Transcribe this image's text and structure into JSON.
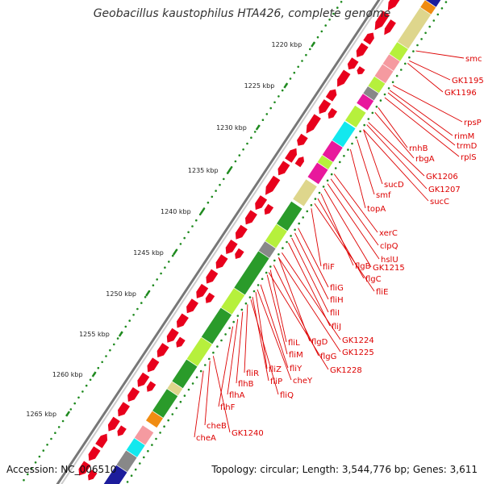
{
  "title": "Geobacillus kaustophilus HTA426, complete genome",
  "footer": {
    "accession": "Accession: NC_006510",
    "summary": "Topology: circular; Length: 3,544,776 bp; Genes: 3,611"
  },
  "colors": {
    "cds": "#e8001c",
    "backbone": "#888888",
    "dots": "#1f8a1f",
    "label": "#dd0000",
    "light_green": "#b6f03c",
    "dark_green": "#2a9b2a",
    "khaki": "#ded68c",
    "pink": "#f59aa0",
    "magenta": "#e8189c",
    "cyan": "#12e8ee",
    "orange": "#f08c12",
    "navy": "#1c1c9c",
    "grey": "#888888"
  },
  "tick_labels": [
    "1220 kbp",
    "1225 kbp",
    "1230 kbp",
    "1235 kbp",
    "1240 kbp",
    "1245 kbp",
    "1250 kbp",
    "1255 kbp",
    "1260 kbp",
    "1265 kbp"
  ],
  "gene_labels": [
    "smc",
    "GK1195",
    "GK1196",
    "rpsP",
    "rimM",
    "trmD",
    "rplS",
    "rnhB",
    "rbgA",
    "GK1206",
    "sucD",
    "GK1207",
    "smf",
    "sucC",
    "topA",
    "xerC",
    "clpQ",
    "hslU",
    "GK1215",
    "flgB",
    "flgC",
    "fliF",
    "fliE",
    "fliG",
    "fliH",
    "fliI",
    "fliJ",
    "GK1224",
    "flgD",
    "GK1225",
    "fliL",
    "fliM",
    "flgG",
    "fliY",
    "GK1228",
    "fliZ",
    "cheY",
    "fliR",
    "fliP",
    "flhB",
    "fliQ",
    "flhA",
    "flhF",
    "cheB",
    "GK1240",
    "cheA"
  ]
}
